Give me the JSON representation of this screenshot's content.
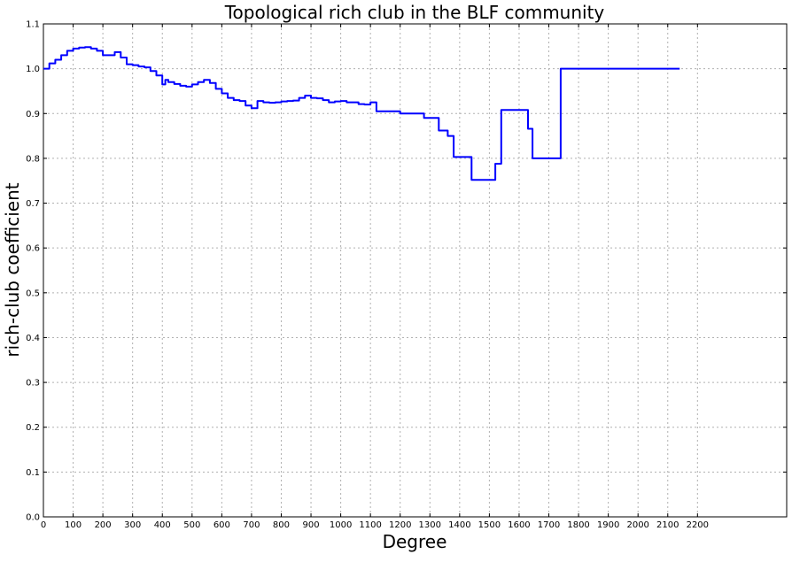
{
  "chart_data": {
    "type": "line",
    "title": "Topological rich club in the BLF community",
    "xlabel": "Degree",
    "ylabel": "rich-club coefficient",
    "xlim": [
      0,
      2500
    ],
    "ylim": [
      0.0,
      1.1
    ],
    "xticks": [
      0,
      100,
      200,
      300,
      400,
      500,
      600,
      700,
      800,
      900,
      1000,
      1100,
      1200,
      1300,
      1400,
      1500,
      1600,
      1700,
      1800,
      1900,
      2000,
      2100,
      2200
    ],
    "yticks": [
      0.0,
      0.1,
      0.2,
      0.3,
      0.4,
      0.5,
      0.6,
      0.7,
      0.8,
      0.9,
      1.0,
      1.1
    ],
    "grid": true,
    "line_color": "#0000ff",
    "series": [
      {
        "x": [
          0,
          20,
          40,
          60,
          80,
          100,
          120,
          140,
          160,
          180,
          200,
          220,
          240,
          260,
          280,
          300,
          320,
          340,
          360,
          380,
          400,
          410,
          420,
          440,
          460,
          480,
          500,
          520,
          540,
          560,
          580,
          600,
          620,
          640,
          660,
          680,
          700,
          720,
          740,
          760,
          780,
          800,
          820,
          840,
          860,
          880,
          900,
          920,
          940,
          960,
          980,
          1000,
          1020,
          1040,
          1060,
          1080,
          1100,
          1120,
          1200,
          1280,
          1330,
          1360,
          1380,
          1440,
          1520,
          1540,
          1630,
          1645,
          1740,
          2140
        ],
        "y": [
          1.0,
          1.012,
          1.02,
          1.03,
          1.04,
          1.045,
          1.047,
          1.048,
          1.045,
          1.04,
          1.03,
          1.03,
          1.037,
          1.025,
          1.01,
          1.008,
          1.005,
          1.003,
          0.995,
          0.985,
          0.965,
          0.975,
          0.97,
          0.966,
          0.962,
          0.96,
          0.965,
          0.97,
          0.975,
          0.968,
          0.955,
          0.945,
          0.935,
          0.93,
          0.928,
          0.918,
          0.912,
          0.928,
          0.925,
          0.924,
          0.925,
          0.927,
          0.928,
          0.929,
          0.935,
          0.94,
          0.935,
          0.934,
          0.93,
          0.925,
          0.927,
          0.928,
          0.925,
          0.925,
          0.921,
          0.92,
          0.925,
          0.905,
          0.9,
          0.89,
          0.862,
          0.85,
          0.803,
          0.752,
          0.788,
          0.908,
          0.866,
          0.8,
          1.0,
          1.0
        ]
      }
    ]
  }
}
